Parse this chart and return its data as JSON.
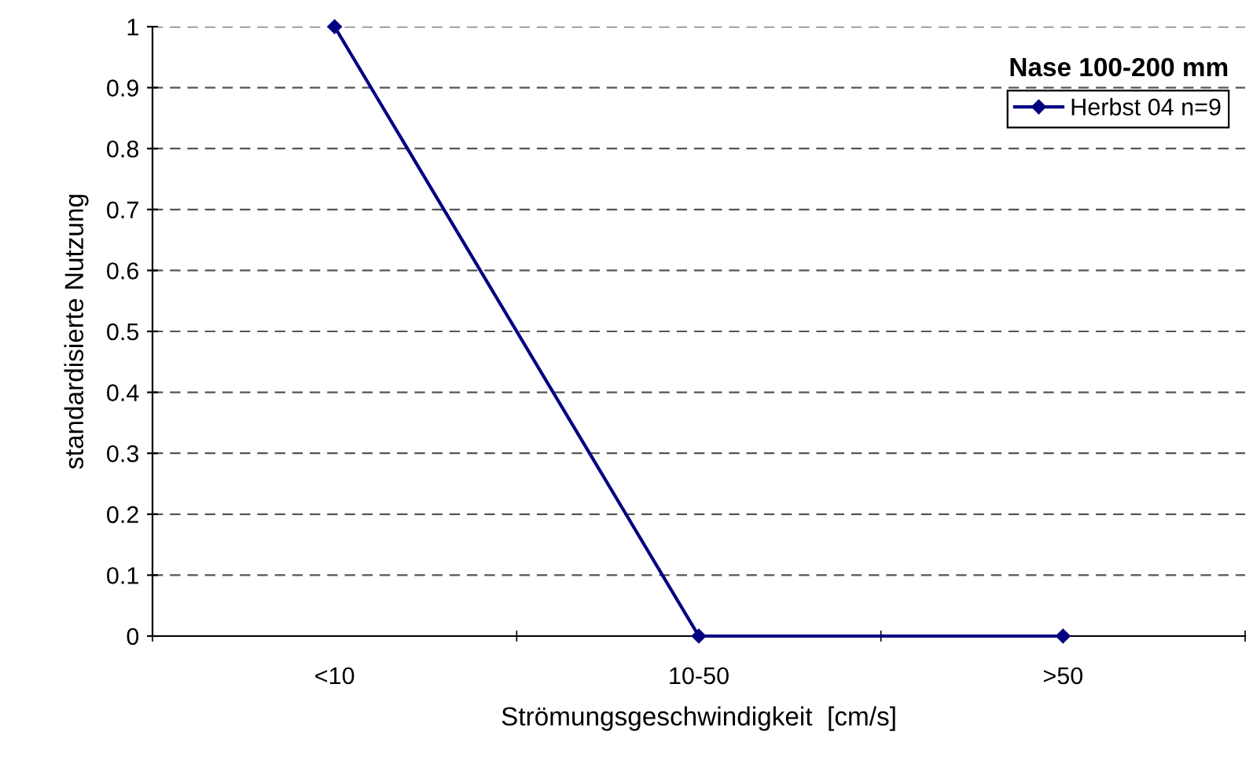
{
  "chart_data": {
    "type": "line",
    "title": "Nase 100-200 mm",
    "xlabel": "Strömungsgeschwindigkeit  [cm/s]",
    "ylabel": "standardisierte Nutzung",
    "categories": [
      "<10",
      "10-50",
      ">50"
    ],
    "series": [
      {
        "name": "Herbst 04 n=9",
        "color": "#000080",
        "values": [
          1,
          0,
          0
        ]
      }
    ],
    "ylim": [
      0,
      1
    ],
    "yticks": [
      0,
      {
        "value": 0.1,
        "label": "0.1"
      },
      {
        "value": 0.2,
        "label": "0.2"
      },
      {
        "value": 0.3,
        "label": "0.3"
      },
      {
        "value": 0.4,
        "label": "0.4"
      },
      {
        "value": 0.5,
        "label": "0.5"
      },
      {
        "value": 0.6,
        "label": "0.6"
      },
      {
        "value": 0.7,
        "label": "0.7"
      },
      {
        "value": 0.8,
        "label": "0.8"
      },
      {
        "value": 0.9,
        "label": "0.9"
      },
      1
    ],
    "grid": "y",
    "legend": "top right",
    "marker": "diamond",
    "line_style": "solid"
  }
}
